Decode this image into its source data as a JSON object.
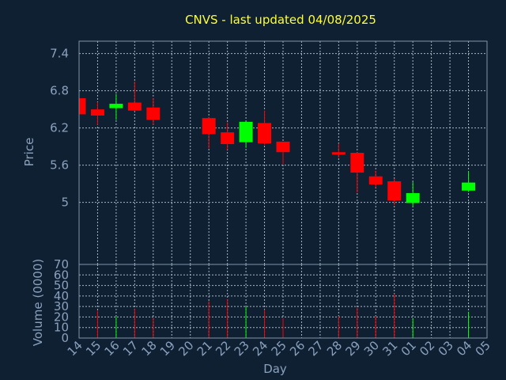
{
  "chart_data": {
    "type": "candlestick",
    "title": "CNVS - last updated 04/08/2025",
    "xlabel": "Day",
    "colors": {
      "background": "#0f2033",
      "plot_border": "#7f93a8",
      "grid": "#b9c6d3",
      "up": "#00ff00",
      "down": "#ff0000",
      "title": "#ffff33",
      "text": "#8aa1bd"
    },
    "x_tick_labels": [
      "14",
      "15",
      "16",
      "17",
      "18",
      "19",
      "20",
      "21",
      "22",
      "23",
      "24",
      "25",
      "26",
      "27",
      "28",
      "29",
      "30",
      "31",
      "01",
      "02",
      "03",
      "04",
      "05"
    ],
    "price_panel": {
      "ylabel": "Price",
      "ylim": [
        4.0,
        7.6
      ],
      "y_ticks": [
        5.0,
        5.6,
        6.2,
        6.8,
        7.4
      ],
      "y_tick_labels": [
        "5",
        "5.6",
        "6.2",
        "6.8",
        "7.4"
      ],
      "candles": [
        {
          "day": "14",
          "open": 6.68,
          "high": 6.75,
          "low": 6.4,
          "close": 6.42
        },
        {
          "day": "15",
          "open": 6.5,
          "high": 6.62,
          "low": 6.25,
          "close": 6.4
        },
        {
          "day": "16",
          "open": 6.52,
          "high": 6.75,
          "low": 6.33,
          "close": 6.59
        },
        {
          "day": "17",
          "open": 6.61,
          "high": 6.95,
          "low": 6.47,
          "close": 6.48
        },
        {
          "day": "18",
          "open": 6.53,
          "high": 6.68,
          "low": 6.25,
          "close": 6.33
        },
        {
          "day": "21",
          "open": 6.36,
          "high": 6.38,
          "low": 5.87,
          "close": 6.1
        },
        {
          "day": "22",
          "open": 6.13,
          "high": 6.29,
          "low": 5.85,
          "close": 5.94
        },
        {
          "day": "23",
          "open": 5.97,
          "high": 6.3,
          "low": 5.88,
          "close": 6.3
        },
        {
          "day": "24",
          "open": 6.28,
          "high": 6.48,
          "low": 5.93,
          "close": 5.95
        },
        {
          "day": "25",
          "open": 5.98,
          "high": 5.98,
          "low": 5.62,
          "close": 5.81
        },
        {
          "day": "28",
          "open": 5.81,
          "high": 5.95,
          "low": 5.72,
          "close": 5.77
        },
        {
          "day": "29",
          "open": 5.8,
          "high": 5.81,
          "low": 5.16,
          "close": 5.48
        },
        {
          "day": "30",
          "open": 5.42,
          "high": 5.51,
          "low": 5.24,
          "close": 5.29
        },
        {
          "day": "31",
          "open": 5.34,
          "high": 5.38,
          "low": 4.96,
          "close": 5.03
        },
        {
          "day": "01",
          "open": 4.99,
          "high": 5.33,
          "low": 4.92,
          "close": 5.15
        },
        {
          "day": "04",
          "open": 5.19,
          "high": 5.5,
          "low": 5.17,
          "close": 5.32
        }
      ]
    },
    "volume_panel": {
      "ylabel": "Volume (0000)",
      "ylim": [
        0,
        70
      ],
      "y_ticks": [
        0,
        10,
        20,
        30,
        40,
        50,
        60,
        70
      ],
      "y_tick_labels": [
        "0",
        "10",
        "20",
        "30",
        "40",
        "50",
        "60",
        "70"
      ],
      "bars": [
        {
          "day": "15",
          "volume": 26,
          "direction": "down"
        },
        {
          "day": "16",
          "volume": 20,
          "direction": "up"
        },
        {
          "day": "17",
          "volume": 28,
          "direction": "down"
        },
        {
          "day": "18",
          "volume": 19,
          "direction": "down"
        },
        {
          "day": "21",
          "volume": 35,
          "direction": "down"
        },
        {
          "day": "22",
          "volume": 37,
          "direction": "down"
        },
        {
          "day": "23",
          "volume": 30,
          "direction": "up"
        },
        {
          "day": "24",
          "volume": 27,
          "direction": "down"
        },
        {
          "day": "25",
          "volume": 19,
          "direction": "down"
        },
        {
          "day": "28",
          "volume": 21,
          "direction": "down"
        },
        {
          "day": "29",
          "volume": 29,
          "direction": "down"
        },
        {
          "day": "30",
          "volume": 21,
          "direction": "down"
        },
        {
          "day": "31",
          "volume": 42,
          "direction": "down"
        },
        {
          "day": "01",
          "volume": 19,
          "direction": "up"
        },
        {
          "day": "04",
          "volume": 25,
          "direction": "up"
        }
      ]
    }
  }
}
